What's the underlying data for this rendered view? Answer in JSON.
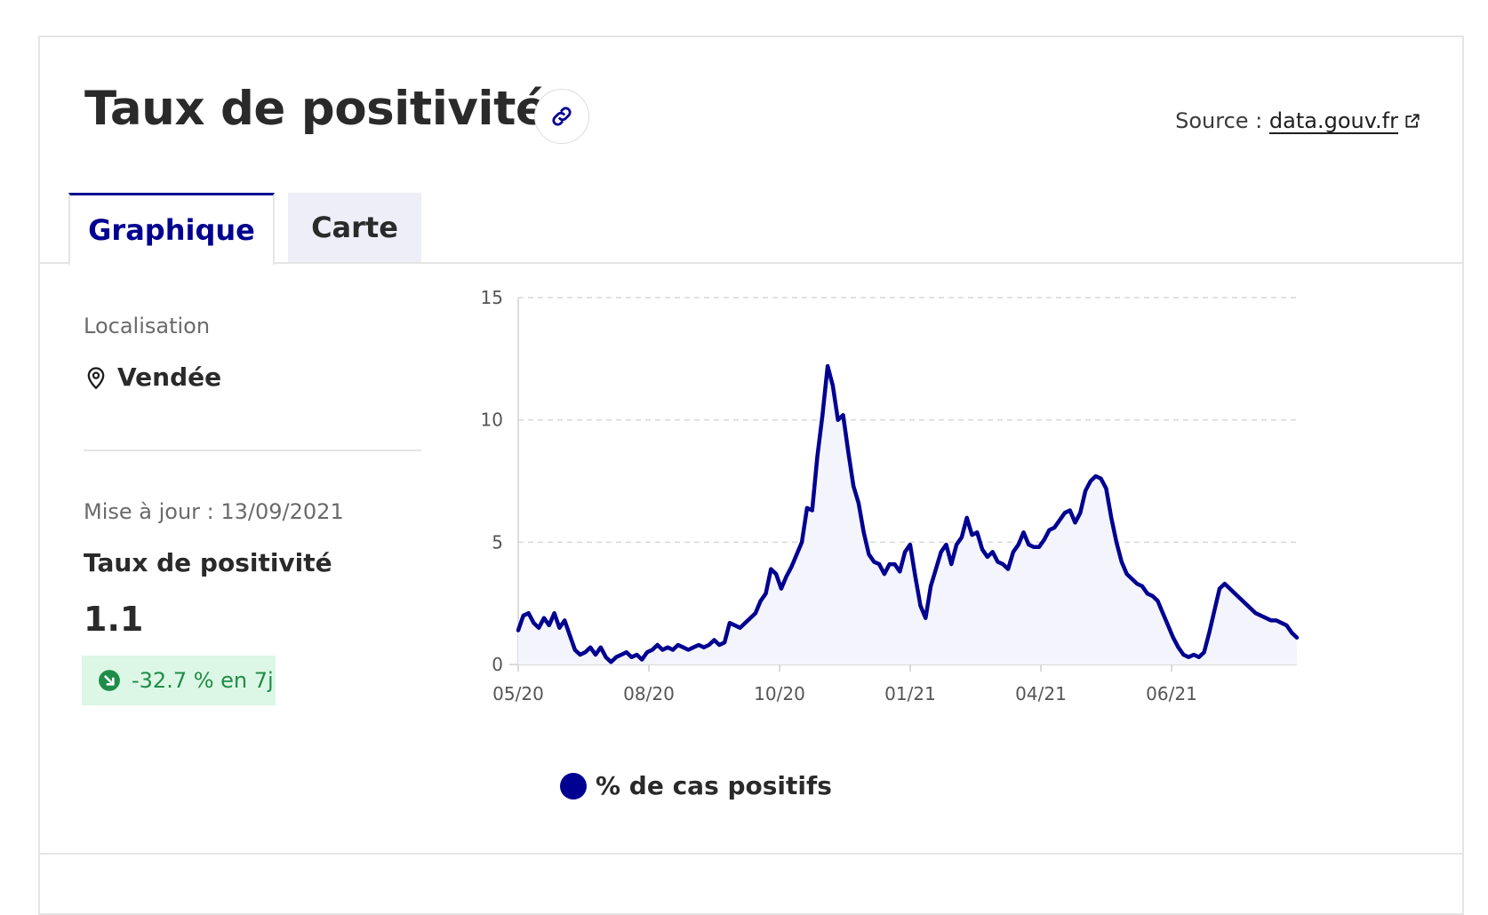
{
  "header": {
    "title": "Taux de positivité",
    "link_icon": "link-icon",
    "source_prefix": "Source : ",
    "source_link": "data.gouv.fr",
    "external_icon": "external-link-icon"
  },
  "tabs": [
    {
      "label": "Graphique",
      "active": true
    },
    {
      "label": "Carte",
      "active": false
    }
  ],
  "sidebar": {
    "location_label": "Localisation",
    "location_icon": "map-pin-icon",
    "location_value": "Vendée",
    "update_text": "Mise à jour : 13/09/2021",
    "metric_label": "Taux de positivité",
    "metric_value": "1.1",
    "trend_icon": "arrow-down-right-icon",
    "trend_text": "-32.7 % en 7j"
  },
  "colors": {
    "accent": "#000091",
    "fill": "#f4f4fc",
    "grid": "#d8d8d8",
    "badge_bg": "#dcf7e5",
    "badge_text": "#1f8d49"
  },
  "chart_data": {
    "type": "area",
    "title": "",
    "xlabel": "",
    "ylabel": "",
    "ylim": [
      0,
      15
    ],
    "yticks": [
      "0",
      "5",
      "10",
      "15"
    ],
    "xticks": [
      "05/20",
      "08/20",
      "10/20",
      "01/21",
      "04/21",
      "06/21"
    ],
    "series": [
      {
        "name": "% de cas positifs",
        "values": [
          1.4,
          2.0,
          2.1,
          1.7,
          1.5,
          1.9,
          1.6,
          2.1,
          1.5,
          1.8,
          1.2,
          0.6,
          0.4,
          0.5,
          0.7,
          0.4,
          0.7,
          0.3,
          0.1,
          0.3,
          0.4,
          0.5,
          0.3,
          0.4,
          0.2,
          0.5,
          0.6,
          0.8,
          0.6,
          0.7,
          0.6,
          0.8,
          0.7,
          0.6,
          0.7,
          0.8,
          0.7,
          0.8,
          1.0,
          0.8,
          0.9,
          1.7,
          1.6,
          1.5,
          1.7,
          1.9,
          2.1,
          2.6,
          2.9,
          3.9,
          3.7,
          3.1,
          3.6,
          4.0,
          4.5,
          5.0,
          6.4,
          6.3,
          8.5,
          10.2,
          12.2,
          11.4,
          10.0,
          10.2,
          8.7,
          7.3,
          6.6,
          5.4,
          4.5,
          4.2,
          4.1,
          3.7,
          4.1,
          4.1,
          3.8,
          4.6,
          4.9,
          3.6,
          2.4,
          1.9,
          3.2,
          3.9,
          4.6,
          4.9,
          4.1,
          4.9,
          5.2,
          6.0,
          5.3,
          5.4,
          4.7,
          4.4,
          4.6,
          4.2,
          4.1,
          3.9,
          4.6,
          4.9,
          5.4,
          4.9,
          4.8,
          4.8,
          5.1,
          5.5,
          5.6,
          5.9,
          6.2,
          6.3,
          5.8,
          6.2,
          7.1,
          7.5,
          7.7,
          7.6,
          7.2,
          6.0,
          5.0,
          4.2,
          3.7,
          3.5,
          3.3,
          3.2,
          2.9,
          2.8,
          2.6,
          2.1,
          1.6,
          1.1,
          0.7,
          0.4,
          0.3,
          0.4,
          0.3,
          0.5,
          1.3,
          2.2,
          3.1,
          3.3,
          3.1,
          2.9,
          2.7,
          2.5,
          2.3,
          2.1,
          2.0,
          1.9,
          1.8,
          1.8,
          1.7,
          1.6,
          1.3,
          1.1
        ]
      }
    ],
    "legend": "bottom-left",
    "grid": "horizontal-dashed"
  }
}
